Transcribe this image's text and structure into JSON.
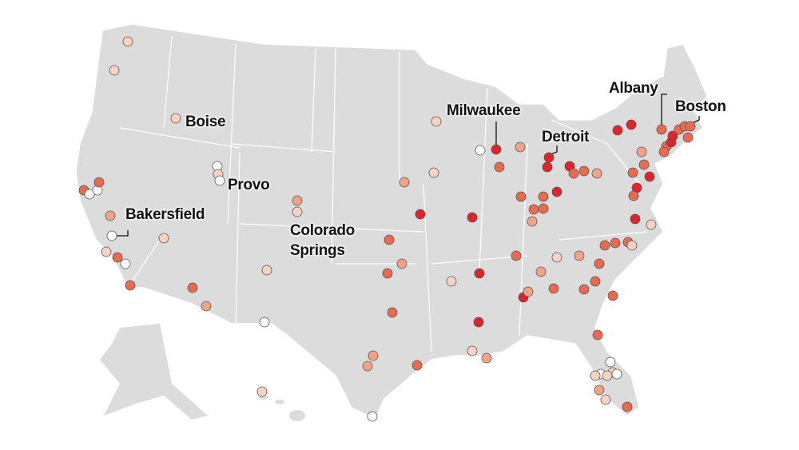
{
  "labels": {
    "boise": "Boise",
    "provo": "Provo",
    "bakersfield": "Bakersfield",
    "colorado_springs": "Colorado Springs",
    "milwaukee": "Milwaukee",
    "detroit": "Detroit",
    "albany": "Albany",
    "boston": "Boston"
  }
}
